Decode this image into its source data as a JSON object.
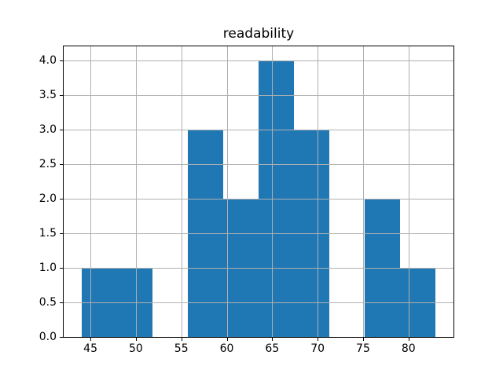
{
  "chart_data": {
    "type": "bar",
    "subtype": "histogram",
    "title": "readability",
    "bin_edges": [
      44.0,
      47.9,
      51.8,
      55.7,
      59.6,
      63.5,
      67.4,
      71.3,
      75.2,
      79.1,
      83.0
    ],
    "counts": [
      1,
      1,
      0,
      3,
      2,
      4,
      3,
      0,
      2,
      1
    ],
    "xlim": [
      42.05,
      84.95
    ],
    "ylim": [
      0,
      4.2
    ],
    "xticks": [
      {
        "value": 45,
        "label": "45"
      },
      {
        "value": 50,
        "label": "50"
      },
      {
        "value": 55,
        "label": "55"
      },
      {
        "value": 60,
        "label": "60"
      },
      {
        "value": 65,
        "label": "65"
      },
      {
        "value": 70,
        "label": "70"
      },
      {
        "value": 75,
        "label": "75"
      },
      {
        "value": 80,
        "label": "80"
      }
    ],
    "yticks": [
      {
        "value": 0.0,
        "label": "0.0"
      },
      {
        "value": 0.5,
        "label": "0.5"
      },
      {
        "value": 1.0,
        "label": "1.0"
      },
      {
        "value": 1.5,
        "label": "1.5"
      },
      {
        "value": 2.0,
        "label": "2.0"
      },
      {
        "value": 2.5,
        "label": "2.5"
      },
      {
        "value": 3.0,
        "label": "3.0"
      },
      {
        "value": 3.5,
        "label": "3.5"
      },
      {
        "value": 4.0,
        "label": "4.0"
      }
    ],
    "grid": true,
    "grid_over_bars": true,
    "legend": null,
    "bar_color": "#1f77b4",
    "grid_color": "#b0b0b0",
    "spine_color": "#000000",
    "background_color": "#ffffff"
  }
}
